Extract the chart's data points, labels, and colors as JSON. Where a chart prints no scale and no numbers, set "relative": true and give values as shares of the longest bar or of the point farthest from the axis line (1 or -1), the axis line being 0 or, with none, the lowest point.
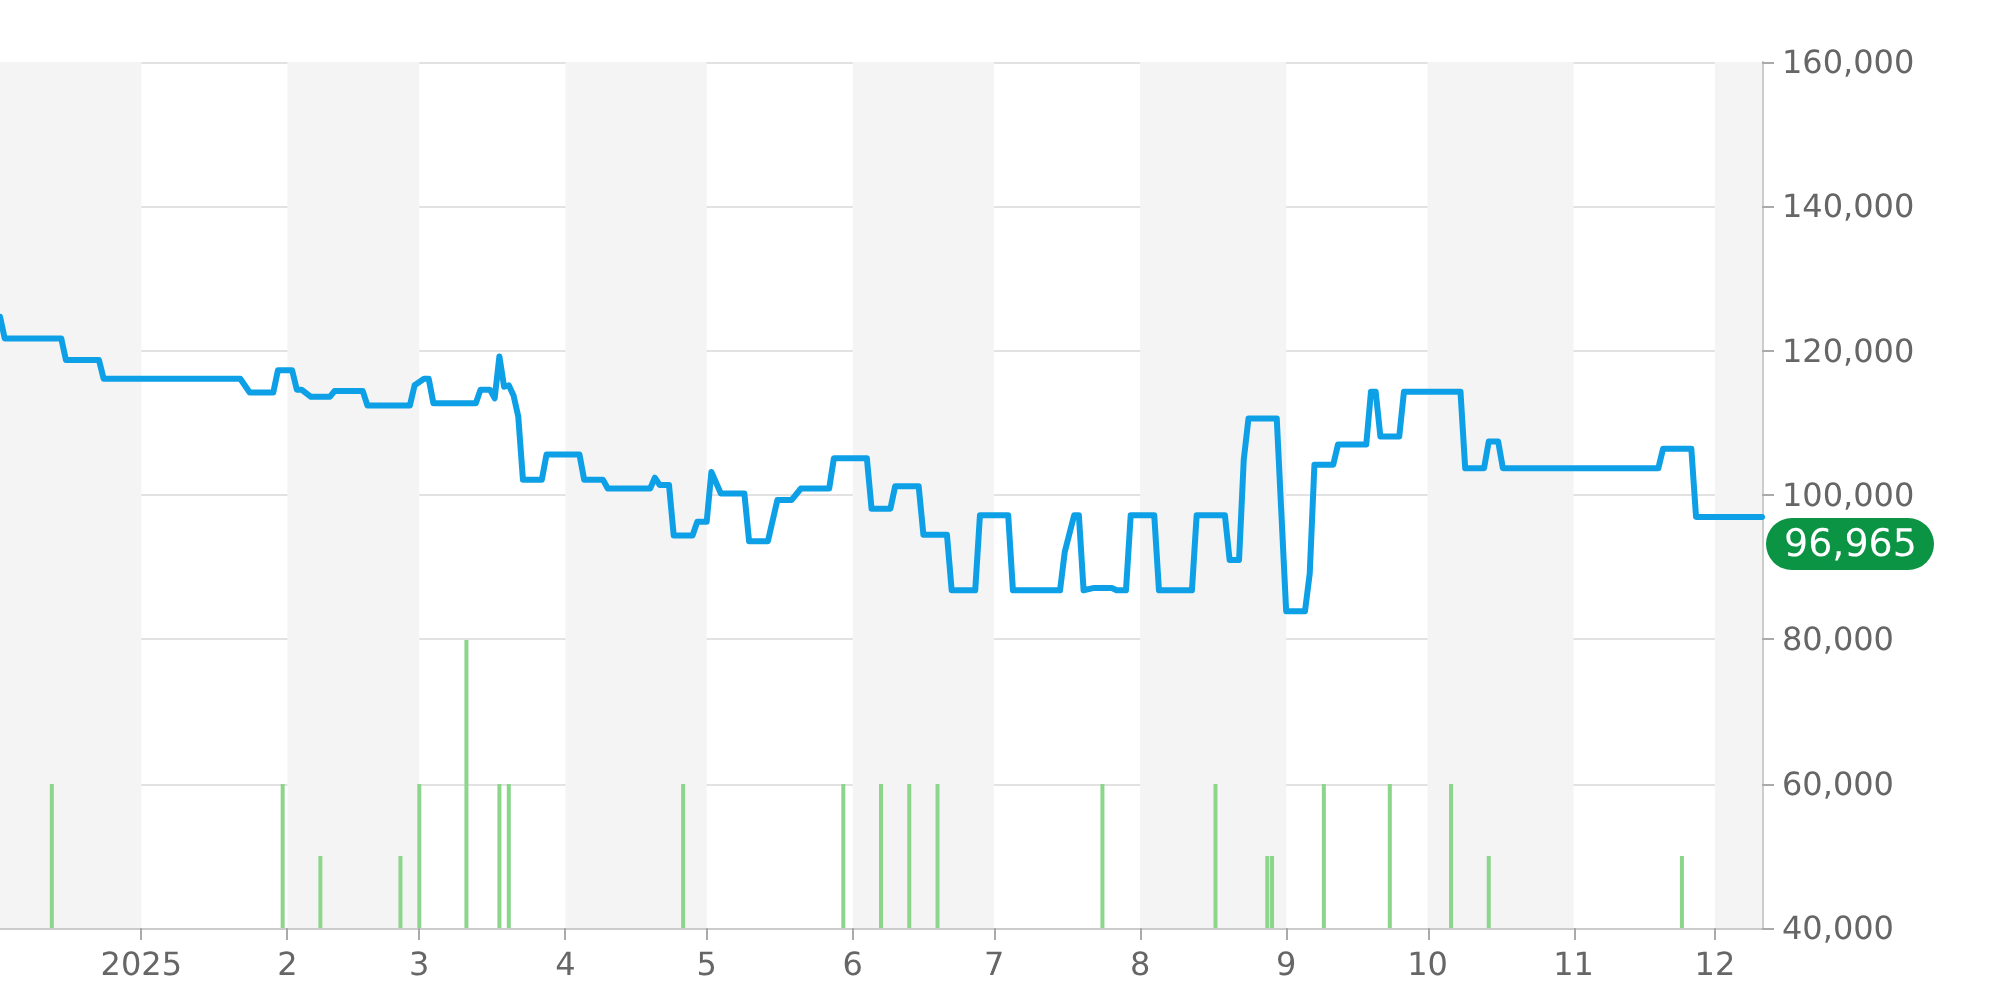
{
  "chart_data": [
    {
      "type": "line",
      "color": "#0ea0e6",
      "marker": "none",
      "line_style": "solid",
      "grid": "y",
      "x": [
        "2024-12-02",
        "2024-12-03",
        "2024-12-15",
        "2024-12-16",
        "2024-12-23",
        "2024-12-24",
        "2025-01-22",
        "2025-01-24",
        "2025-01-29",
        "2025-01-30",
        "2025-02-02",
        "2025-02-03",
        "2025-02-04",
        "2025-02-06",
        "2025-02-10",
        "2025-02-11",
        "2025-02-17",
        "2025-02-18",
        "2025-02-27",
        "2025-02-28",
        "2025-03-02",
        "2025-03-03",
        "2025-03-04",
        "2025-03-13",
        "2025-03-14",
        "2025-03-16",
        "2025-03-17",
        "2025-03-18",
        "2025-03-19",
        "2025-03-20",
        "2025-03-21",
        "2025-03-22",
        "2025-03-23",
        "2025-03-27",
        "2025-03-28",
        "2025-04-04",
        "2025-04-05",
        "2025-04-09",
        "2025-04-10",
        "2025-04-19",
        "2025-04-20",
        "2025-04-21",
        "2025-04-23",
        "2025-04-24",
        "2025-04-28",
        "2025-04-29",
        "2025-05-01",
        "2025-05-02",
        "2025-05-04",
        "2025-05-09",
        "2025-05-10",
        "2025-05-14",
        "2025-05-16",
        "2025-05-19",
        "2025-05-21",
        "2025-05-27",
        "2025-05-28",
        "2025-06-04",
        "2025-06-05",
        "2025-06-09",
        "2025-06-10",
        "2025-06-15",
        "2025-06-16",
        "2025-06-21",
        "2025-06-22",
        "2025-06-27",
        "2025-06-28",
        "2025-07-04",
        "2025-07-05",
        "2025-07-15",
        "2025-07-16",
        "2025-07-18",
        "2025-07-19",
        "2025-07-20",
        "2025-07-22",
        "2025-07-26",
        "2025-07-27",
        "2025-07-29",
        "2025-07-30",
        "2025-08-04",
        "2025-08-05",
        "2025-08-12",
        "2025-08-13",
        "2025-08-19",
        "2025-08-20",
        "2025-08-22",
        "2025-08-23",
        "2025-08-24",
        "2025-08-30",
        "2025-09-01",
        "2025-09-05",
        "2025-09-06",
        "2025-09-07",
        "2025-09-11",
        "2025-09-12",
        "2025-09-18",
        "2025-09-19",
        "2025-09-20",
        "2025-09-21",
        "2025-09-25",
        "2025-09-26",
        "2025-10-08",
        "2025-10-09",
        "2025-10-13",
        "2025-10-14",
        "2025-10-16",
        "2025-10-17",
        "2025-11-19",
        "2025-11-20",
        "2025-11-26",
        "2025-11-27",
        "2025-12-11"
      ],
      "values": [
        124700,
        121700,
        121700,
        118700,
        118700,
        116100,
        116100,
        114200,
        114200,
        117300,
        117300,
        114600,
        114600,
        113600,
        113600,
        114400,
        114400,
        112400,
        112400,
        115200,
        116100,
        116100,
        112700,
        112700,
        114600,
        114600,
        113400,
        119200,
        115000,
        115200,
        113800,
        110900,
        102100,
        102100,
        105600,
        105600,
        102100,
        102100,
        100900,
        100900,
        102400,
        101400,
        101400,
        94400,
        94400,
        96300,
        96300,
        103200,
        100200,
        100200,
        93600,
        93600,
        99300,
        99300,
        100900,
        100900,
        105100,
        105100,
        98100,
        98100,
        101200,
        101200,
        94500,
        94500,
        86800,
        86800,
        97200,
        97200,
        86800,
        86800,
        92100,
        97200,
        97200,
        86800,
        87100,
        87100,
        86800,
        86800,
        97200,
        97200,
        86800,
        86800,
        97200,
        97200,
        91000,
        91000,
        104900,
        110600,
        110600,
        83900,
        83900,
        89100,
        104200,
        104200,
        107000,
        107000,
        114300,
        114300,
        108100,
        108100,
        114300,
        114300,
        103700,
        103700,
        107400,
        107400,
        103700,
        103700,
        106400,
        106400,
        96965,
        96965
      ],
      "xlim": [
        "2024-12-02",
        "2025-12-11"
      ],
      "xticks": [
        {
          "value": "2025-01-01",
          "label": "2025"
        },
        {
          "value": "2025-02-01",
          "label": "2"
        },
        {
          "value": "2025-03-01",
          "label": "3"
        },
        {
          "value": "2025-04-01",
          "label": "4"
        },
        {
          "value": "2025-05-01",
          "label": "5"
        },
        {
          "value": "2025-06-01",
          "label": "6"
        },
        {
          "value": "2025-07-01",
          "label": "7"
        },
        {
          "value": "2025-08-01",
          "label": "8"
        },
        {
          "value": "2025-09-01",
          "label": "9"
        },
        {
          "value": "2025-10-01",
          "label": "10"
        },
        {
          "value": "2025-11-01",
          "label": "11"
        },
        {
          "value": "2025-12-01",
          "label": "12"
        }
      ],
      "ylim": [
        40000,
        160000
      ],
      "yticks": [
        {
          "value": 40000,
          "label": "40,000"
        },
        {
          "value": 60000,
          "label": "60,000"
        },
        {
          "value": 80000,
          "label": "80,000"
        },
        {
          "value": 100000,
          "label": "100,000"
        },
        {
          "value": 120000,
          "label": "120,000"
        },
        {
          "value": 140000,
          "label": "140,000"
        },
        {
          "value": 160000,
          "label": "160,000"
        }
      ],
      "bands": [
        {
          "axis": "x",
          "from": "2024-12-02",
          "to": "2025-01-01",
          "color": "#f4f4f4"
        },
        {
          "axis": "x",
          "from": "2025-02-01",
          "to": "2025-03-01",
          "color": "#f4f4f4"
        },
        {
          "axis": "x",
          "from": "2025-04-01",
          "to": "2025-05-01",
          "color": "#f4f4f4"
        },
        {
          "axis": "x",
          "from": "2025-06-01",
          "to": "2025-07-01",
          "color": "#f4f4f4"
        },
        {
          "axis": "x",
          "from": "2025-08-01",
          "to": "2025-09-01",
          "color": "#f4f4f4"
        },
        {
          "axis": "x",
          "from": "2025-10-01",
          "to": "2025-11-01",
          "color": "#f4f4f4"
        },
        {
          "axis": "x",
          "from": "2025-12-01",
          "to": "2025-12-11",
          "color": "#f4f4f4"
        }
      ],
      "annotations": [
        {
          "text": "96,965",
          "x": "2025-12-11",
          "y": 96965
        }
      ]
    },
    {
      "type": "bar",
      "relative": true,
      "color": "#8cd68c",
      "tick_labels": false,
      "x": [
        "2024-12-13",
        "2025-01-31",
        "2025-02-08",
        "2025-02-25",
        "2025-03-01",
        "2025-03-11",
        "2025-03-18",
        "2025-03-20",
        "2025-04-26",
        "2025-05-30",
        "2025-06-07",
        "2025-06-13",
        "2025-06-19",
        "2025-07-24",
        "2025-08-17",
        "2025-08-28",
        "2025-08-29",
        "2025-09-09",
        "2025-09-23",
        "2025-10-06",
        "2025-10-14",
        "2025-11-24"
      ],
      "values": [
        0.5,
        0.5,
        0.25,
        0.25,
        0.5,
        1,
        0.5,
        0.5,
        0.5,
        0.5,
        0.5,
        0.5,
        0.5,
        0.5,
        0.5,
        0.25,
        0.25,
        0.5,
        0.5,
        0.5,
        0.25,
        0.25
      ],
      "xlim": [
        "2024-12-02",
        "2025-12-11"
      ]
    }
  ]
}
